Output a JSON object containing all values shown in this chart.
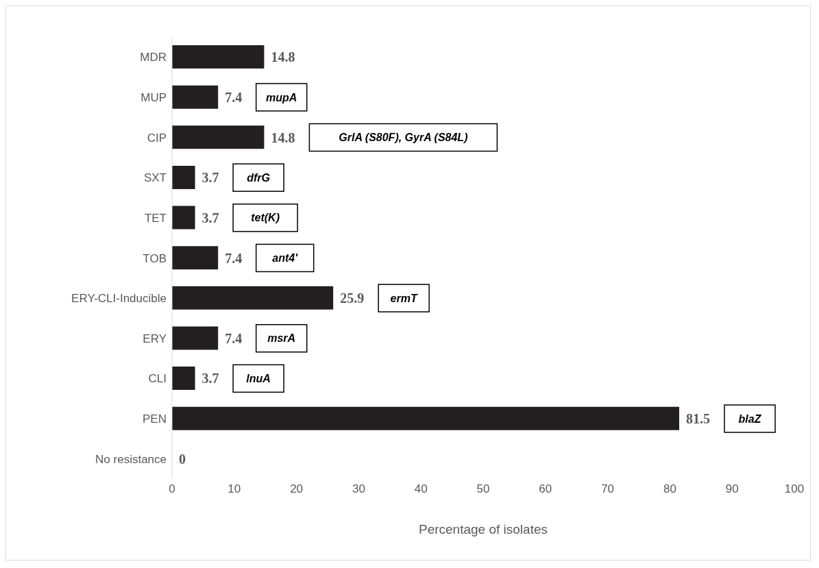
{
  "chart_data": {
    "type": "bar",
    "orientation": "horizontal",
    "xlabel": "Percentage of isolates",
    "categories": [
      "MDR",
      "MUP",
      "CIP",
      "SXT",
      "TET",
      "TOB",
      "ERY-CLI-Inducible",
      "ERY",
      "CLI",
      "PEN",
      "No resistance"
    ],
    "values": [
      14.8,
      7.4,
      14.8,
      3.7,
      3.7,
      7.4,
      25.9,
      7.4,
      3.7,
      81.5,
      0
    ],
    "color": "#231f20",
    "data_labels": true,
    "xlim": [
      0,
      100
    ],
    "xticks": [
      0,
      10,
      20,
      30,
      40,
      50,
      60,
      70,
      80,
      90,
      100
    ],
    "grid": false,
    "legend": false,
    "annotations": [
      "mupA",
      "GrlA (S80F), GyrA (S84L)",
      "dfrG",
      "tet(K)",
      "ant4'",
      "ermT",
      "msrA",
      "lnuA",
      "blaZ"
    ]
  }
}
